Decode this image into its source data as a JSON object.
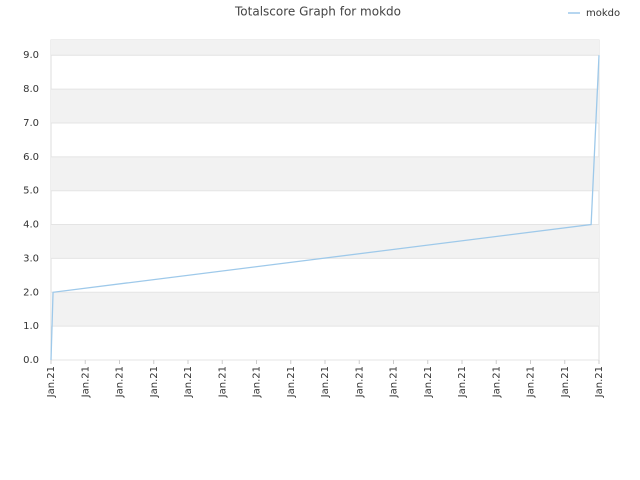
{
  "chart_data": {
    "type": "line",
    "title": "Totalscore Graph for mokdo",
    "x": [
      0,
      0.06,
      15.77,
      16
    ],
    "series": [
      {
        "name": "mokdo",
        "color": "#9ec9ea",
        "values": [
          0,
          2,
          4,
          9
        ]
      }
    ],
    "xlim": [
      0,
      16
    ],
    "xticks": [
      {
        "value": 0,
        "label": "Jan.21"
      },
      {
        "value": 1,
        "label": "Jan.21"
      },
      {
        "value": 2,
        "label": "Jan.21"
      },
      {
        "value": 3,
        "label": "Jan.21"
      },
      {
        "value": 4,
        "label": "Jan.21"
      },
      {
        "value": 5,
        "label": "Jan.21"
      },
      {
        "value": 6,
        "label": "Jan.21"
      },
      {
        "value": 7,
        "label": "Jan.21"
      },
      {
        "value": 8,
        "label": "Jan.21"
      },
      {
        "value": 9,
        "label": "Jan.21"
      },
      {
        "value": 10,
        "label": "Jan.21"
      },
      {
        "value": 11,
        "label": "Jan.21"
      },
      {
        "value": 12,
        "label": "Jan.21"
      },
      {
        "value": 13,
        "label": "Jan.21"
      },
      {
        "value": 14,
        "label": "Jan.21"
      },
      {
        "value": 15,
        "label": "Jan.21"
      },
      {
        "value": 16,
        "label": "Jan.21"
      }
    ],
    "ylim": [
      0,
      9.45
    ],
    "yticks": [
      {
        "value": 0,
        "label": "0.0"
      },
      {
        "value": 1,
        "label": "1.0"
      },
      {
        "value": 2,
        "label": "2.0"
      },
      {
        "value": 3,
        "label": "3.0"
      },
      {
        "value": 4,
        "label": "4.0"
      },
      {
        "value": 5,
        "label": "5.0"
      },
      {
        "value": 6,
        "label": "6.0"
      },
      {
        "value": 7,
        "label": "7.0"
      },
      {
        "value": 8,
        "label": "8.0"
      },
      {
        "value": 9,
        "label": "9.0"
      }
    ],
    "grid": true,
    "legend": "top-right"
  }
}
